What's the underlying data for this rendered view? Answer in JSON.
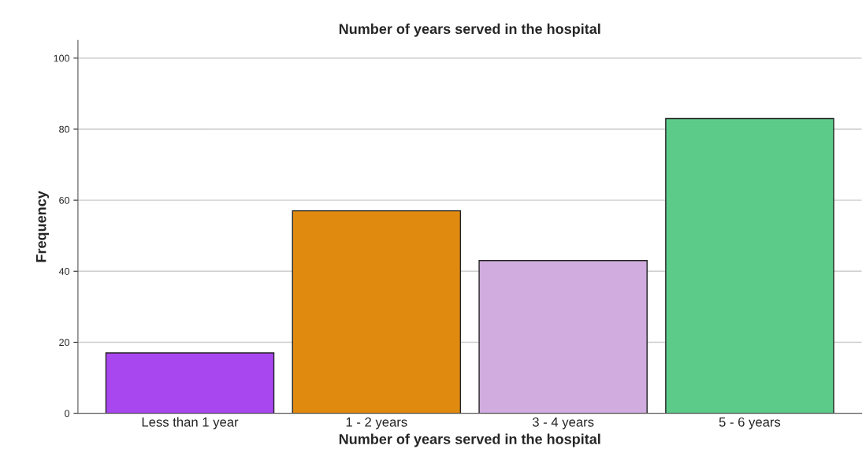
{
  "chart_data": {
    "type": "bar",
    "title": "Number of years served in the hospital",
    "xlabel": "Number of years served in the hospital",
    "ylabel": "Frequency",
    "categories": [
      "Less than 1 year",
      "1 - 2 years",
      "3 - 4 years",
      "5 - 6 years"
    ],
    "values": [
      17,
      57,
      43,
      83
    ],
    "colors": [
      "#a846f0",
      "#e08a10",
      "#d0acdf",
      "#5ccb8a"
    ],
    "ylim": [
      0,
      105
    ],
    "yticks": [
      0,
      20,
      40,
      60,
      80,
      100
    ],
    "grid": "y"
  }
}
